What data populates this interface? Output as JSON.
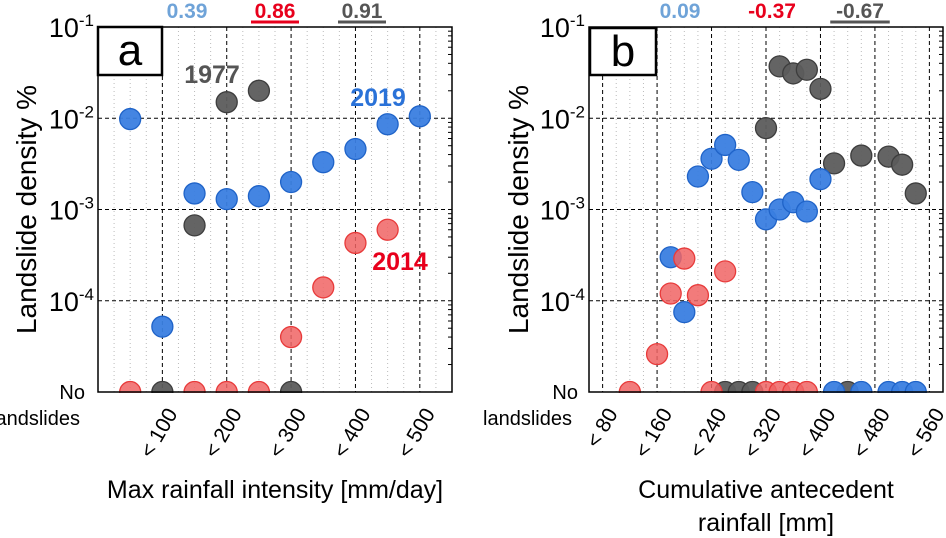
{
  "chart_data": [
    {
      "type": "scatter",
      "panel_label": "a",
      "xlabel": [
        "Max rainfall intensity [mm/day]"
      ],
      "ylabel": "Landslide density %",
      "y_scale": "log",
      "ylim": [
        1e-05,
        0.1
      ],
      "xlim": [
        0,
        550
      ],
      "y_tick_labels": [
        {
          "base": "10",
          "exp": "-1"
        },
        {
          "base": "10",
          "exp": "-2"
        },
        {
          "base": "10",
          "exp": "-3"
        },
        {
          "base": "10",
          "exp": "-4"
        }
      ],
      "no_landslides_label": [
        "No",
        "landslides"
      ],
      "x_ticks": [
        100,
        200,
        300,
        400,
        500
      ],
      "x_tick_labels": [
        "< 100",
        "< 200",
        "< 300",
        "< 400",
        "< 500"
      ],
      "x_minor_step": 25,
      "grid": true,
      "correlations": [
        {
          "text": "0.39",
          "color": "#6fa3d8",
          "underline": false
        },
        {
          "text": "0.86",
          "color": "#e8001c",
          "underline": true
        },
        {
          "text": "0.91",
          "color": "#555555",
          "underline": true
        }
      ],
      "series": [
        {
          "name": "1977",
          "color": "#5c5c5c",
          "x": [
            100,
            150,
            200,
            250,
            300
          ],
          "y": [
            0,
            0.00067,
            0.015,
            0.02,
            0
          ]
        },
        {
          "name": "2019",
          "color": "#3a7ee0",
          "x": [
            50,
            100,
            150,
            200,
            250,
            300,
            350,
            400,
            450,
            500
          ],
          "y": [
            0.0098,
            5.2e-05,
            0.0015,
            0.0013,
            0.0014,
            0.002,
            0.0033,
            0.0046,
            0.0086,
            0.0105
          ]
        },
        {
          "name": "2014",
          "color": "#f06464",
          "x": [
            50,
            150,
            200,
            250,
            300,
            350,
            400,
            450
          ],
          "y": [
            0,
            0,
            0,
            0,
            4e-05,
            0.00014,
            0.00043,
            0.0006
          ]
        }
      ],
      "series_labels": [
        {
          "text": "1977",
          "color": "#555555"
        },
        {
          "text": "2019",
          "color": "#2a72d8"
        },
        {
          "text": "2014",
          "color": "#e8001c"
        }
      ]
    },
    {
      "type": "scatter",
      "panel_label": "b",
      "xlabel": [
        "Cumulative antecedent",
        "rainfall [mm]"
      ],
      "ylabel": "Landslide density %",
      "y_scale": "log",
      "ylim": [
        1e-05,
        0.1
      ],
      "xlim": [
        60,
        580
      ],
      "y_tick_labels": [
        {
          "base": "10",
          "exp": "-1"
        },
        {
          "base": "10",
          "exp": "-2"
        },
        {
          "base": "10",
          "exp": "-3"
        },
        {
          "base": "10",
          "exp": "-4"
        }
      ],
      "no_landslides_label": [
        "No",
        "landslides"
      ],
      "x_ticks": [
        80,
        160,
        240,
        320,
        400,
        480,
        560
      ],
      "x_tick_labels": [
        "< 80",
        "< 160",
        "< 240",
        "< 320",
        "< 400",
        "< 480",
        "< 560"
      ],
      "x_minor_step": 20,
      "grid": true,
      "correlations": [
        {
          "text": "0.09",
          "color": "#6fa3d8",
          "underline": false
        },
        {
          "text": "-0.37",
          "color": "#e8001c",
          "underline": false
        },
        {
          "text": "-0.67",
          "color": "#555555",
          "underline": true
        }
      ],
      "series": [
        {
          "name": "1977",
          "color": "#5c5c5c",
          "x": [
            260,
            280,
            300,
            320,
            340,
            360,
            380,
            400,
            420,
            440,
            460,
            500,
            520,
            540
          ],
          "y": [
            0,
            0,
            0,
            0.0078,
            0.037,
            0.031,
            0.034,
            0.021,
            0.0032,
            0,
            0.0039,
            0.0038,
            0.0031,
            0.0015
          ]
        },
        {
          "name": "2019",
          "color": "#3a7ee0",
          "x": [
            180,
            200,
            220,
            240,
            260,
            280,
            300,
            320,
            340,
            360,
            380,
            400,
            420,
            460,
            500,
            520,
            540
          ],
          "y": [
            0.0003,
            7.5e-05,
            0.0023,
            0.0036,
            0.0051,
            0.0035,
            0.00155,
            0.00078,
            0.001,
            0.0012,
            0.00095,
            0.00215,
            0,
            0,
            0,
            0,
            0
          ]
        },
        {
          "name": "2014",
          "color": "#f06464",
          "x": [
            120,
            160,
            180,
            200,
            220,
            240,
            260,
            320,
            340,
            360,
            380
          ],
          "y": [
            0,
            2.6e-05,
            0.00012,
            0.00029,
            0.000115,
            0,
            0.00021,
            0,
            0,
            0,
            0
          ]
        }
      ],
      "series_labels": []
    }
  ]
}
